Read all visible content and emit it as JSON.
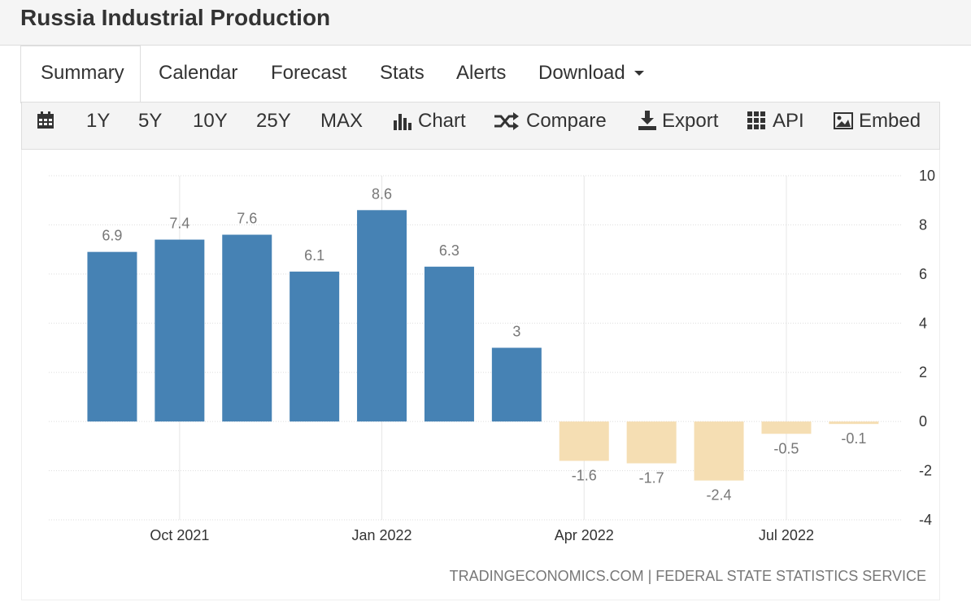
{
  "header": {
    "title": "Russia Industrial Production"
  },
  "tabs": [
    "Summary",
    "Calendar",
    "Forecast",
    "Stats",
    "Alerts",
    "Download"
  ],
  "toolbar": [
    "1Y",
    "5Y",
    "10Y",
    "25Y",
    "MAX",
    "Chart",
    "Compare",
    "Export",
    "API",
    "Embed"
  ],
  "chart_data": {
    "type": "bar",
    "categories": [
      null,
      "Oct 2021",
      null,
      null,
      "Jan 2022",
      null,
      null,
      "Apr 2022",
      null,
      null,
      "Jul 2022",
      null
    ],
    "values": [
      6.9,
      7.4,
      7.6,
      6.1,
      8.6,
      6.3,
      3,
      -1.6,
      -1.7,
      -2.4,
      -0.5,
      -0.1
    ],
    "positive_color": "#4682b4",
    "negative_color": "#f5deb3",
    "ylim": [
      -4,
      10
    ],
    "yticks": [
      -4,
      -2,
      0,
      2,
      4,
      6,
      8,
      10
    ],
    "grid": true,
    "source": "TRADINGECONOMICS.COM | FEDERAL STATE STATISTICS SERVICE"
  }
}
